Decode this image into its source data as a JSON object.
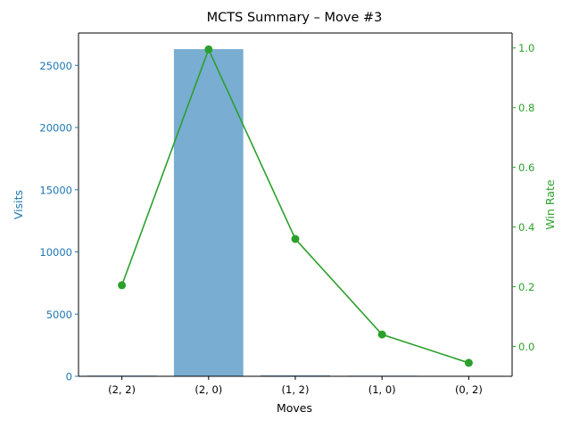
{
  "chart_data": {
    "type": "bar",
    "title": "MCTS Summary – Move #3",
    "xlabel": "Moves",
    "categories": [
      "(2, 2)",
      "(2, 0)",
      "(1, 2)",
      "(1, 0)",
      "(0, 2)"
    ],
    "series": [
      {
        "name": "Visits",
        "type": "bar",
        "axis": "left",
        "color": "#1f77b4",
        "values": [
          60,
          26300,
          80,
          50,
          40
        ]
      },
      {
        "name": "Win Rate",
        "type": "line",
        "axis": "right",
        "color": "#2ca02c",
        "values": [
          0.205,
          0.995,
          0.36,
          0.04,
          -0.055
        ]
      }
    ],
    "left_axis": {
      "label": "Visits",
      "color": "#1f77b4",
      "ylim": [
        0,
        27600
      ],
      "ticks": [
        0,
        5000,
        10000,
        15000,
        20000,
        25000
      ]
    },
    "right_axis": {
      "label": "Win Rate",
      "color": "#2ca02c",
      "ylim": [
        -0.1,
        1.05
      ],
      "ticks": [
        0.0,
        0.2,
        0.4,
        0.6,
        0.8,
        1.0
      ],
      "tick_labels": [
        "0.0",
        "0.2",
        "0.4",
        "0.6",
        "0.8",
        "1.0"
      ]
    },
    "grid": false,
    "legend": "none"
  }
}
